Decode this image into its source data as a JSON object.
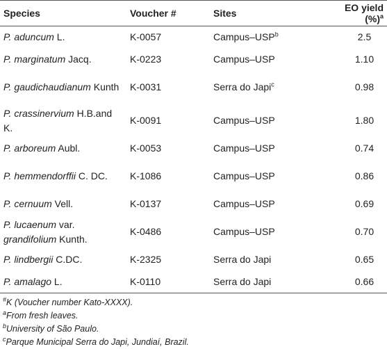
{
  "table": {
    "header": [
      {
        "text": "Species"
      },
      {
        "text": "Voucher #"
      },
      {
        "text": "Sites"
      },
      {
        "text": "EO yield (%)",
        "sup": "a"
      }
    ],
    "rows": [
      {
        "species": [
          {
            "text": "P. aduncum",
            "italic": true
          },
          {
            "text": "L."
          }
        ],
        "voucher": "K-0057",
        "site": {
          "text": "Campus–USP",
          "sup": "b"
        },
        "yield": "2.5"
      },
      {
        "species": [
          {
            "text": "P. marginatum",
            "italic": true
          },
          {
            "text": "Jacq."
          }
        ],
        "voucher": "K-0223",
        "site": {
          "text": "Campus–USP"
        },
        "yield": "1.10"
      },
      {
        "species": [
          {
            "text": "P. gaudichaudianum",
            "italic": true
          },
          {
            "text": "Kunth"
          }
        ],
        "voucher": "K-0031",
        "site": {
          "text": "Serra do Japi",
          "sup": "c"
        },
        "yield": "0.98"
      },
      {
        "species": [
          {
            "text": "P. crassinervium",
            "italic": true
          },
          {
            "text": "H.B.and K."
          }
        ],
        "voucher": "K-0091",
        "site": {
          "text": "Campus–USP"
        },
        "yield": "1.80"
      },
      {
        "species": [
          {
            "text": "P. arboreum",
            "italic": true
          },
          {
            "text": "Aubl."
          }
        ],
        "voucher": "K-0053",
        "site": {
          "text": "Campus–USP"
        },
        "yield": "0.74"
      },
      {
        "species": [
          {
            "text": "P. hemmendorffii",
            "italic": true
          },
          {
            "text": "C. DC."
          }
        ],
        "voucher": "K-1086",
        "site": {
          "text": "Campus–USP"
        },
        "yield": "0.86"
      },
      {
        "species": [
          {
            "text": "P. cernuum",
            "italic": true
          },
          {
            "text": "Vell."
          }
        ],
        "voucher": "K-0137",
        "site": {
          "text": "Campus–USP"
        },
        "yield": "0.69"
      },
      {
        "species": [
          {
            "text": "P. lucaenum",
            "italic": true
          },
          {
            "text": "var."
          },
          {
            "text": "grandifolium",
            "italic": true
          },
          {
            "text": "Kunth."
          }
        ],
        "voucher": "K-0486",
        "site": {
          "text": "Campus–USP"
        },
        "yield": "0.70"
      },
      {
        "species": [
          {
            "text": "P. lindbergii",
            "italic": true
          },
          {
            "text": "C.DC."
          }
        ],
        "voucher": "K-2325",
        "site": {
          "text": "Serra do Japi"
        },
        "yield": "0.65"
      },
      {
        "species": [
          {
            "text": "P. amalago",
            "italic": true
          },
          {
            "text": "L."
          }
        ],
        "voucher": "K-0110",
        "site": {
          "text": "Serra do Japi"
        },
        "yield": "0.66"
      }
    ],
    "footnotes": [
      {
        "mark": "#",
        "text": "K (Voucher number Kato-XXXX)."
      },
      {
        "mark": "a",
        "text": "From fresh leaves."
      },
      {
        "mark": "b",
        "text": "University of São Paulo."
      },
      {
        "mark": "c",
        "text": "Parque Municipal Serra do Japi, Jundiaí, Brazil."
      }
    ]
  }
}
